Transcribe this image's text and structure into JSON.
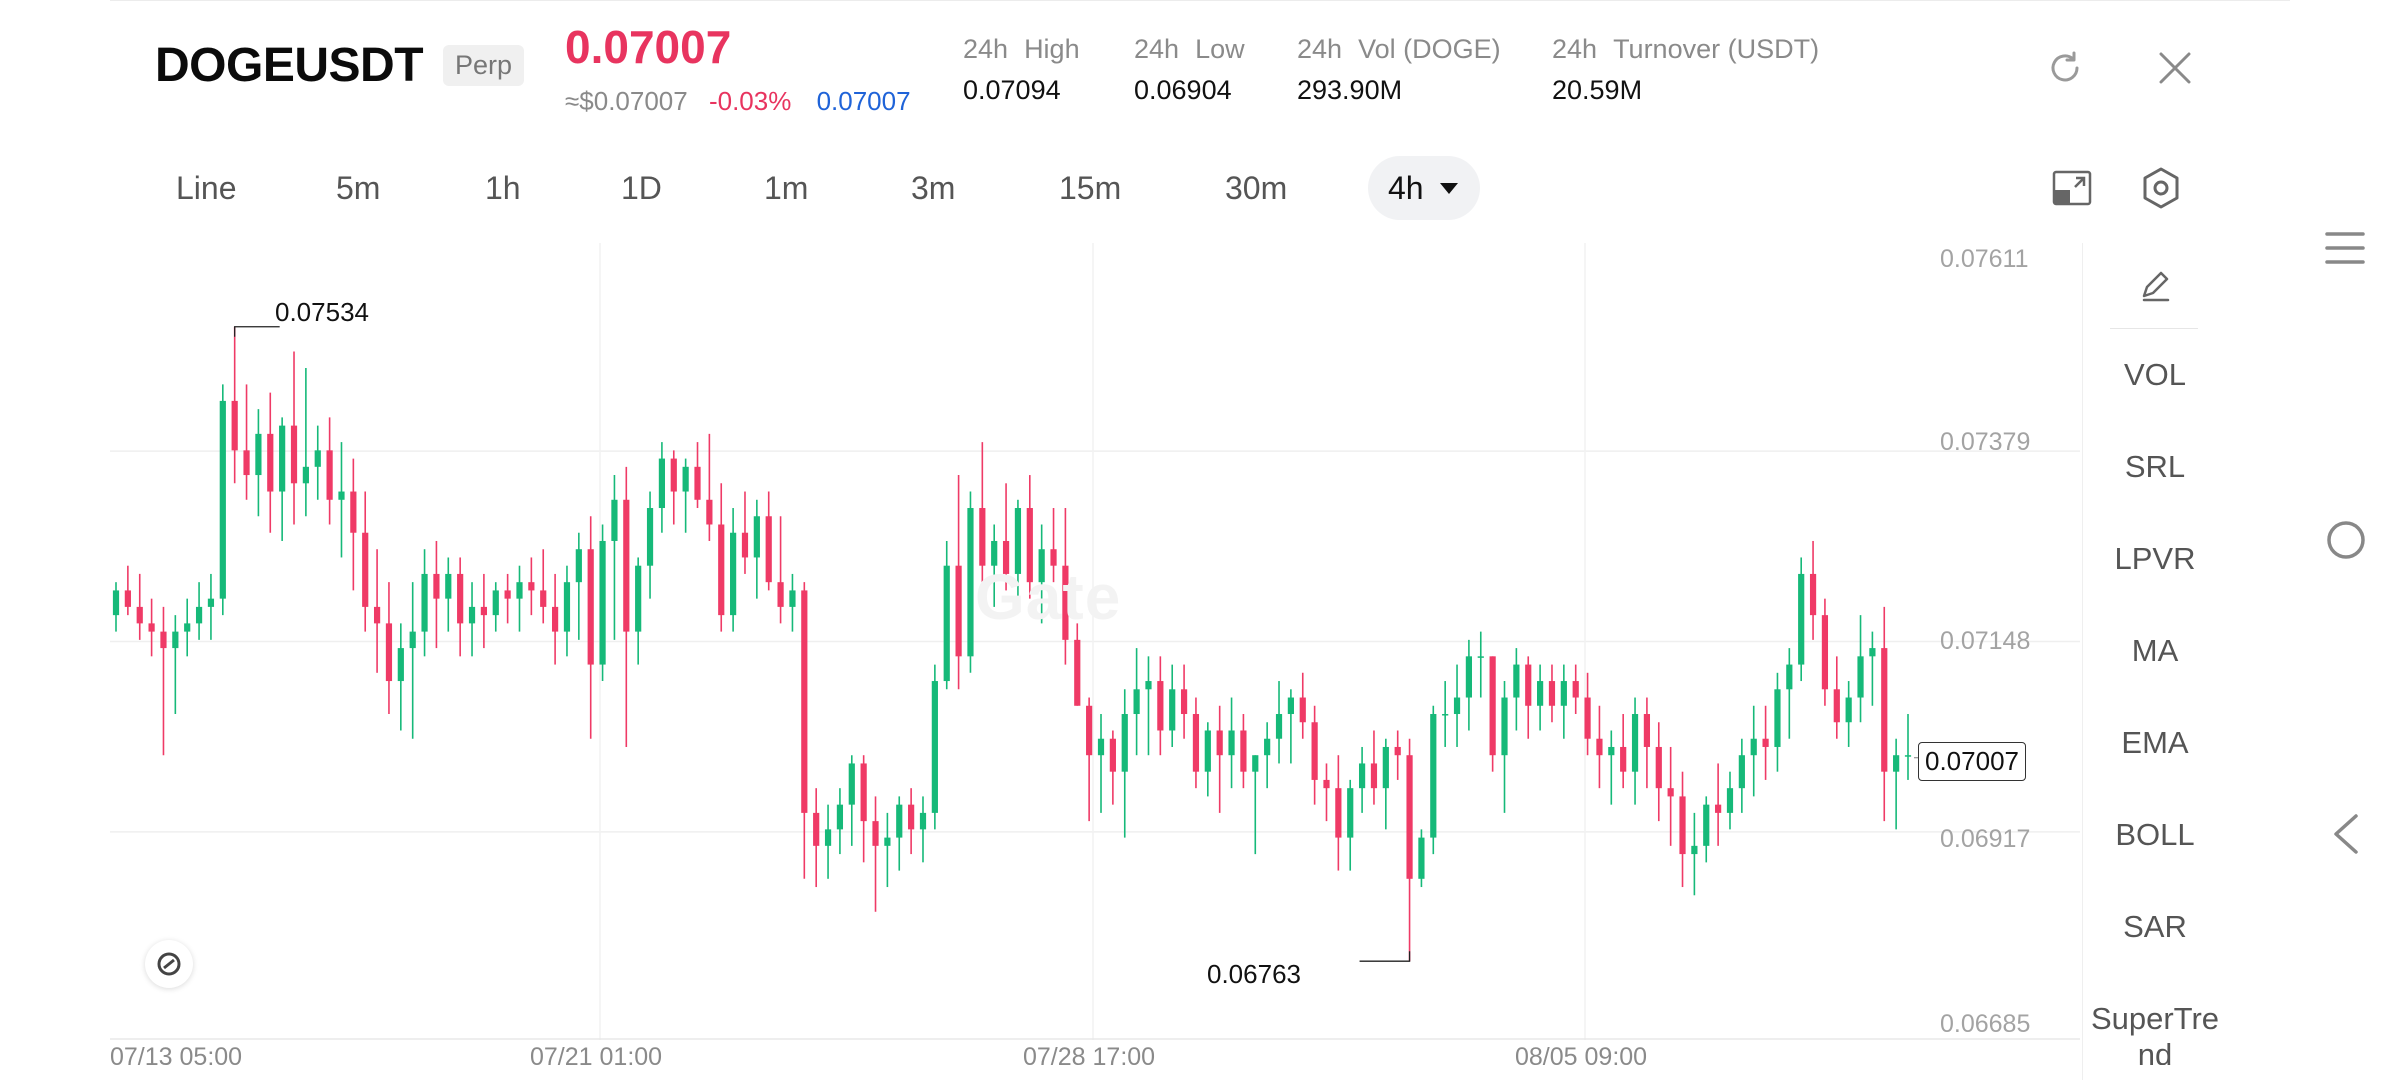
{
  "header": {
    "symbol": "DOGEUSDT",
    "contract_type": "Perp",
    "last_price": "0.07007",
    "usd_price": "≈$0.07007",
    "change_pct": "-0.03%",
    "mark_price": "0.07007",
    "stats": [
      {
        "period": "24h",
        "name": "High",
        "value": "0.07094"
      },
      {
        "period": "24h",
        "name": "Low",
        "value": "0.06904"
      },
      {
        "period": "24h",
        "name": "Vol (DOGE)",
        "value": "293.90M"
      },
      {
        "period": "24h",
        "name": "Turnover (USDT)",
        "value": "20.59M"
      }
    ],
    "icons": [
      "refresh-icon",
      "close-icon"
    ]
  },
  "timeframes": {
    "items": [
      "Line",
      "5m",
      "1h",
      "1D",
      "1m",
      "3m",
      "15m",
      "30m"
    ],
    "selected": "4h",
    "icons": [
      "fullscreen-icon",
      "settings-icon"
    ]
  },
  "chart_data": {
    "type": "candlestick",
    "title": "",
    "interval": "4h",
    "y_ticks": [
      "0.07611",
      "0.07379",
      "0.07148",
      "0.06917",
      "0.06685"
    ],
    "ylim": [
      0.06685,
      0.07611
    ],
    "x_ticks": [
      "07/13 05:00",
      "07/21 01:00",
      "07/28 17:00",
      "08/05 09:00"
    ],
    "last_price_label": "0.07007",
    "annotations": [
      {
        "label": "0.07534",
        "kind": "high"
      },
      {
        "label": "0.06763",
        "kind": "low"
      }
    ],
    "watermark": "Gate",
    "grid": true,
    "colors": {
      "up": "#16b979",
      "down": "#ef3a66"
    },
    "candles": [
      [
        0.0718,
        0.0722,
        0.0716,
        0.0721
      ],
      [
        0.0721,
        0.0724,
        0.0718,
        0.0719
      ],
      [
        0.0719,
        0.0723,
        0.0715,
        0.0717
      ],
      [
        0.0717,
        0.072,
        0.0713,
        0.0716
      ],
      [
        0.0716,
        0.0719,
        0.0701,
        0.0714
      ],
      [
        0.0714,
        0.0718,
        0.0706,
        0.0716
      ],
      [
        0.0716,
        0.072,
        0.0713,
        0.0717
      ],
      [
        0.0717,
        0.0722,
        0.0715,
        0.0719
      ],
      [
        0.0719,
        0.0723,
        0.0715,
        0.072
      ],
      [
        0.072,
        0.0746,
        0.0718,
        0.0744
      ],
      [
        0.0744,
        0.0753,
        0.0734,
        0.0738
      ],
      [
        0.0738,
        0.0746,
        0.0732,
        0.0735
      ],
      [
        0.0735,
        0.0743,
        0.073,
        0.074
      ],
      [
        0.074,
        0.0745,
        0.0728,
        0.0733
      ],
      [
        0.0733,
        0.0742,
        0.0727,
        0.0741
      ],
      [
        0.0741,
        0.075,
        0.0729,
        0.0734
      ],
      [
        0.0734,
        0.0748,
        0.073,
        0.0736
      ],
      [
        0.0736,
        0.0741,
        0.0732,
        0.0738
      ],
      [
        0.0738,
        0.0742,
        0.0729,
        0.0732
      ],
      [
        0.0732,
        0.0739,
        0.0725,
        0.0733
      ],
      [
        0.0733,
        0.0737,
        0.0721,
        0.0728
      ],
      [
        0.0728,
        0.0733,
        0.0716,
        0.0719
      ],
      [
        0.0719,
        0.0726,
        0.0711,
        0.0717
      ],
      [
        0.0717,
        0.0722,
        0.0706,
        0.071
      ],
      [
        0.071,
        0.0717,
        0.0704,
        0.0714
      ],
      [
        0.0714,
        0.0722,
        0.0703,
        0.0716
      ],
      [
        0.0716,
        0.0726,
        0.0713,
        0.0723
      ],
      [
        0.0723,
        0.0727,
        0.0714,
        0.072
      ],
      [
        0.072,
        0.0725,
        0.0716,
        0.0723
      ],
      [
        0.0723,
        0.0725,
        0.0713,
        0.0717
      ],
      [
        0.0717,
        0.0722,
        0.0713,
        0.0719
      ],
      [
        0.0719,
        0.0723,
        0.0714,
        0.0718
      ],
      [
        0.0718,
        0.0722,
        0.0716,
        0.0721
      ],
      [
        0.0721,
        0.0723,
        0.0717,
        0.072
      ],
      [
        0.072,
        0.0724,
        0.0716,
        0.0722
      ],
      [
        0.0722,
        0.0725,
        0.0718,
        0.0721
      ],
      [
        0.0721,
        0.0726,
        0.0717,
        0.0719
      ],
      [
        0.0719,
        0.0723,
        0.0712,
        0.0716
      ],
      [
        0.0716,
        0.0724,
        0.0713,
        0.0722
      ],
      [
        0.0722,
        0.0728,
        0.0715,
        0.0726
      ],
      [
        0.0726,
        0.073,
        0.0703,
        0.0712
      ],
      [
        0.0712,
        0.0729,
        0.071,
        0.0727
      ],
      [
        0.0727,
        0.0735,
        0.0715,
        0.0732
      ],
      [
        0.0732,
        0.0736,
        0.0702,
        0.0716
      ],
      [
        0.0716,
        0.0725,
        0.0712,
        0.0724
      ],
      [
        0.0724,
        0.0733,
        0.072,
        0.0731
      ],
      [
        0.0731,
        0.0739,
        0.0728,
        0.0737
      ],
      [
        0.0737,
        0.0738,
        0.0729,
        0.0733
      ],
      [
        0.0733,
        0.0737,
        0.0728,
        0.0736
      ],
      [
        0.0736,
        0.0739,
        0.0731,
        0.0732
      ],
      [
        0.0732,
        0.074,
        0.0727,
        0.0729
      ],
      [
        0.0729,
        0.0734,
        0.0716,
        0.0718
      ],
      [
        0.0718,
        0.0731,
        0.0716,
        0.0728
      ],
      [
        0.0728,
        0.0733,
        0.0723,
        0.0725
      ],
      [
        0.0725,
        0.0732,
        0.072,
        0.073
      ],
      [
        0.073,
        0.0733,
        0.0721,
        0.0722
      ],
      [
        0.0722,
        0.073,
        0.0717,
        0.0719
      ],
      [
        0.0719,
        0.0723,
        0.0716,
        0.0721
      ],
      [
        0.0721,
        0.0722,
        0.0686,
        0.0694
      ],
      [
        0.0694,
        0.0697,
        0.0685,
        0.069
      ],
      [
        0.069,
        0.0695,
        0.0686,
        0.0692
      ],
      [
        0.0692,
        0.0697,
        0.0689,
        0.0695
      ],
      [
        0.0695,
        0.0701,
        0.069,
        0.07
      ],
      [
        0.07,
        0.0701,
        0.0688,
        0.0693
      ],
      [
        0.0693,
        0.0696,
        0.0682,
        0.069
      ],
      [
        0.069,
        0.0694,
        0.0685,
        0.0691
      ],
      [
        0.0691,
        0.0696,
        0.0687,
        0.0695
      ],
      [
        0.0695,
        0.0697,
        0.0689,
        0.0692
      ],
      [
        0.0692,
        0.0696,
        0.0688,
        0.0694
      ],
      [
        0.0694,
        0.0712,
        0.0692,
        0.071
      ],
      [
        0.071,
        0.0727,
        0.0709,
        0.0724
      ],
      [
        0.0724,
        0.0735,
        0.0709,
        0.0713
      ],
      [
        0.0713,
        0.0733,
        0.0711,
        0.0731
      ],
      [
        0.0731,
        0.0739,
        0.0721,
        0.0724
      ],
      [
        0.0724,
        0.0729,
        0.0719,
        0.0727
      ],
      [
        0.0727,
        0.0734,
        0.0721,
        0.0723
      ],
      [
        0.0723,
        0.0732,
        0.0719,
        0.0731
      ],
      [
        0.0731,
        0.0735,
        0.072,
        0.0722
      ],
      [
        0.0722,
        0.0729,
        0.0717,
        0.0726
      ],
      [
        0.0726,
        0.0731,
        0.0722,
        0.0724
      ],
      [
        0.0724,
        0.0731,
        0.0712,
        0.0715
      ],
      [
        0.0715,
        0.0717,
        0.0707,
        0.0707
      ],
      [
        0.0707,
        0.0708,
        0.0693,
        0.0701
      ],
      [
        0.0701,
        0.0706,
        0.0694,
        0.0703
      ],
      [
        0.0703,
        0.0704,
        0.0695,
        0.0699
      ],
      [
        0.0699,
        0.0709,
        0.0691,
        0.0706
      ],
      [
        0.0706,
        0.0714,
        0.0701,
        0.0709
      ],
      [
        0.0709,
        0.0713,
        0.0701,
        0.071
      ],
      [
        0.071,
        0.0713,
        0.0701,
        0.0704
      ],
      [
        0.0704,
        0.0712,
        0.0702,
        0.0709
      ],
      [
        0.0709,
        0.0712,
        0.0703,
        0.0706
      ],
      [
        0.0706,
        0.0708,
        0.0697,
        0.0699
      ],
      [
        0.0699,
        0.0705,
        0.0696,
        0.0704
      ],
      [
        0.0704,
        0.0707,
        0.0694,
        0.0701
      ],
      [
        0.0701,
        0.0708,
        0.0697,
        0.0704
      ],
      [
        0.0704,
        0.0706,
        0.0697,
        0.0699
      ],
      [
        0.0699,
        0.0701,
        0.0689,
        0.0701
      ],
      [
        0.0701,
        0.0705,
        0.0697,
        0.0703
      ],
      [
        0.0703,
        0.071,
        0.07,
        0.0706
      ],
      [
        0.0706,
        0.0709,
        0.07,
        0.0708
      ],
      [
        0.0708,
        0.0711,
        0.0703,
        0.0705
      ],
      [
        0.0705,
        0.0707,
        0.0695,
        0.0698
      ],
      [
        0.0698,
        0.07,
        0.0693,
        0.0697
      ],
      [
        0.0697,
        0.0701,
        0.0687,
        0.0691
      ],
      [
        0.0691,
        0.0698,
        0.0687,
        0.0697
      ],
      [
        0.0697,
        0.0702,
        0.0694,
        0.07
      ],
      [
        0.07,
        0.0704,
        0.0695,
        0.0697
      ],
      [
        0.0697,
        0.0703,
        0.0692,
        0.0702
      ],
      [
        0.0702,
        0.0704,
        0.0698,
        0.0701
      ],
      [
        0.0701,
        0.0703,
        0.0676,
        0.0686
      ],
      [
        0.0686,
        0.0692,
        0.0685,
        0.0691
      ],
      [
        0.0691,
        0.0707,
        0.0689,
        0.0706
      ],
      [
        0.0706,
        0.071,
        0.0702,
        0.0706
      ],
      [
        0.0706,
        0.0712,
        0.0702,
        0.0708
      ],
      [
        0.0708,
        0.0715,
        0.0704,
        0.0713
      ],
      [
        0.0713,
        0.0716,
        0.0708,
        0.0713
      ],
      [
        0.0713,
        0.0713,
        0.0699,
        0.0701
      ],
      [
        0.0701,
        0.071,
        0.0694,
        0.0708
      ],
      [
        0.0708,
        0.0714,
        0.0704,
        0.0712
      ],
      [
        0.0712,
        0.0713,
        0.0703,
        0.0707
      ],
      [
        0.0707,
        0.0712,
        0.0704,
        0.071
      ],
      [
        0.071,
        0.0712,
        0.0705,
        0.0707
      ],
      [
        0.0707,
        0.0712,
        0.0703,
        0.071
      ],
      [
        0.071,
        0.0712,
        0.0706,
        0.0708
      ],
      [
        0.0708,
        0.0711,
        0.0701,
        0.0703
      ],
      [
        0.0703,
        0.0707,
        0.0697,
        0.0701
      ],
      [
        0.0701,
        0.0704,
        0.0695,
        0.0702
      ],
      [
        0.0702,
        0.0706,
        0.0697,
        0.0699
      ],
      [
        0.0699,
        0.0708,
        0.0695,
        0.0706
      ],
      [
        0.0706,
        0.0708,
        0.0697,
        0.0702
      ],
      [
        0.0702,
        0.0705,
        0.0693,
        0.0697
      ],
      [
        0.0697,
        0.0702,
        0.069,
        0.0696
      ],
      [
        0.0696,
        0.0699,
        0.0685,
        0.0689
      ],
      [
        0.0689,
        0.0694,
        0.0684,
        0.069
      ],
      [
        0.069,
        0.0696,
        0.0688,
        0.0695
      ],
      [
        0.0695,
        0.07,
        0.069,
        0.0694
      ],
      [
        0.0694,
        0.0699,
        0.0692,
        0.0697
      ],
      [
        0.0697,
        0.0703,
        0.0694,
        0.0701
      ],
      [
        0.0701,
        0.0707,
        0.0696,
        0.0703
      ],
      [
        0.0703,
        0.0707,
        0.0698,
        0.0702
      ],
      [
        0.0702,
        0.0711,
        0.0699,
        0.0709
      ],
      [
        0.0709,
        0.0714,
        0.0703,
        0.0712
      ],
      [
        0.0712,
        0.0725,
        0.071,
        0.0723
      ],
      [
        0.0723,
        0.0727,
        0.0715,
        0.0718
      ],
      [
        0.0718,
        0.072,
        0.0707,
        0.0709
      ],
      [
        0.0709,
        0.0713,
        0.0703,
        0.0705
      ],
      [
        0.0705,
        0.071,
        0.0702,
        0.0708
      ],
      [
        0.0708,
        0.0718,
        0.0705,
        0.0713
      ],
      [
        0.0713,
        0.0716,
        0.0707,
        0.0714
      ],
      [
        0.0714,
        0.0719,
        0.0693,
        0.0699
      ],
      [
        0.0699,
        0.0703,
        0.0692,
        0.0701
      ],
      [
        0.0701,
        0.0706,
        0.0698,
        0.0701
      ]
    ]
  },
  "indicators": {
    "items": [
      "VOL",
      "SRL",
      "LPVR",
      "MA",
      "EMA",
      "BOLL",
      "SAR",
      "SuperTrend"
    ],
    "icons": [
      "pencil-icon"
    ]
  },
  "system_nav": {
    "icons": [
      "menu-icon",
      "home-icon",
      "back-icon"
    ]
  }
}
